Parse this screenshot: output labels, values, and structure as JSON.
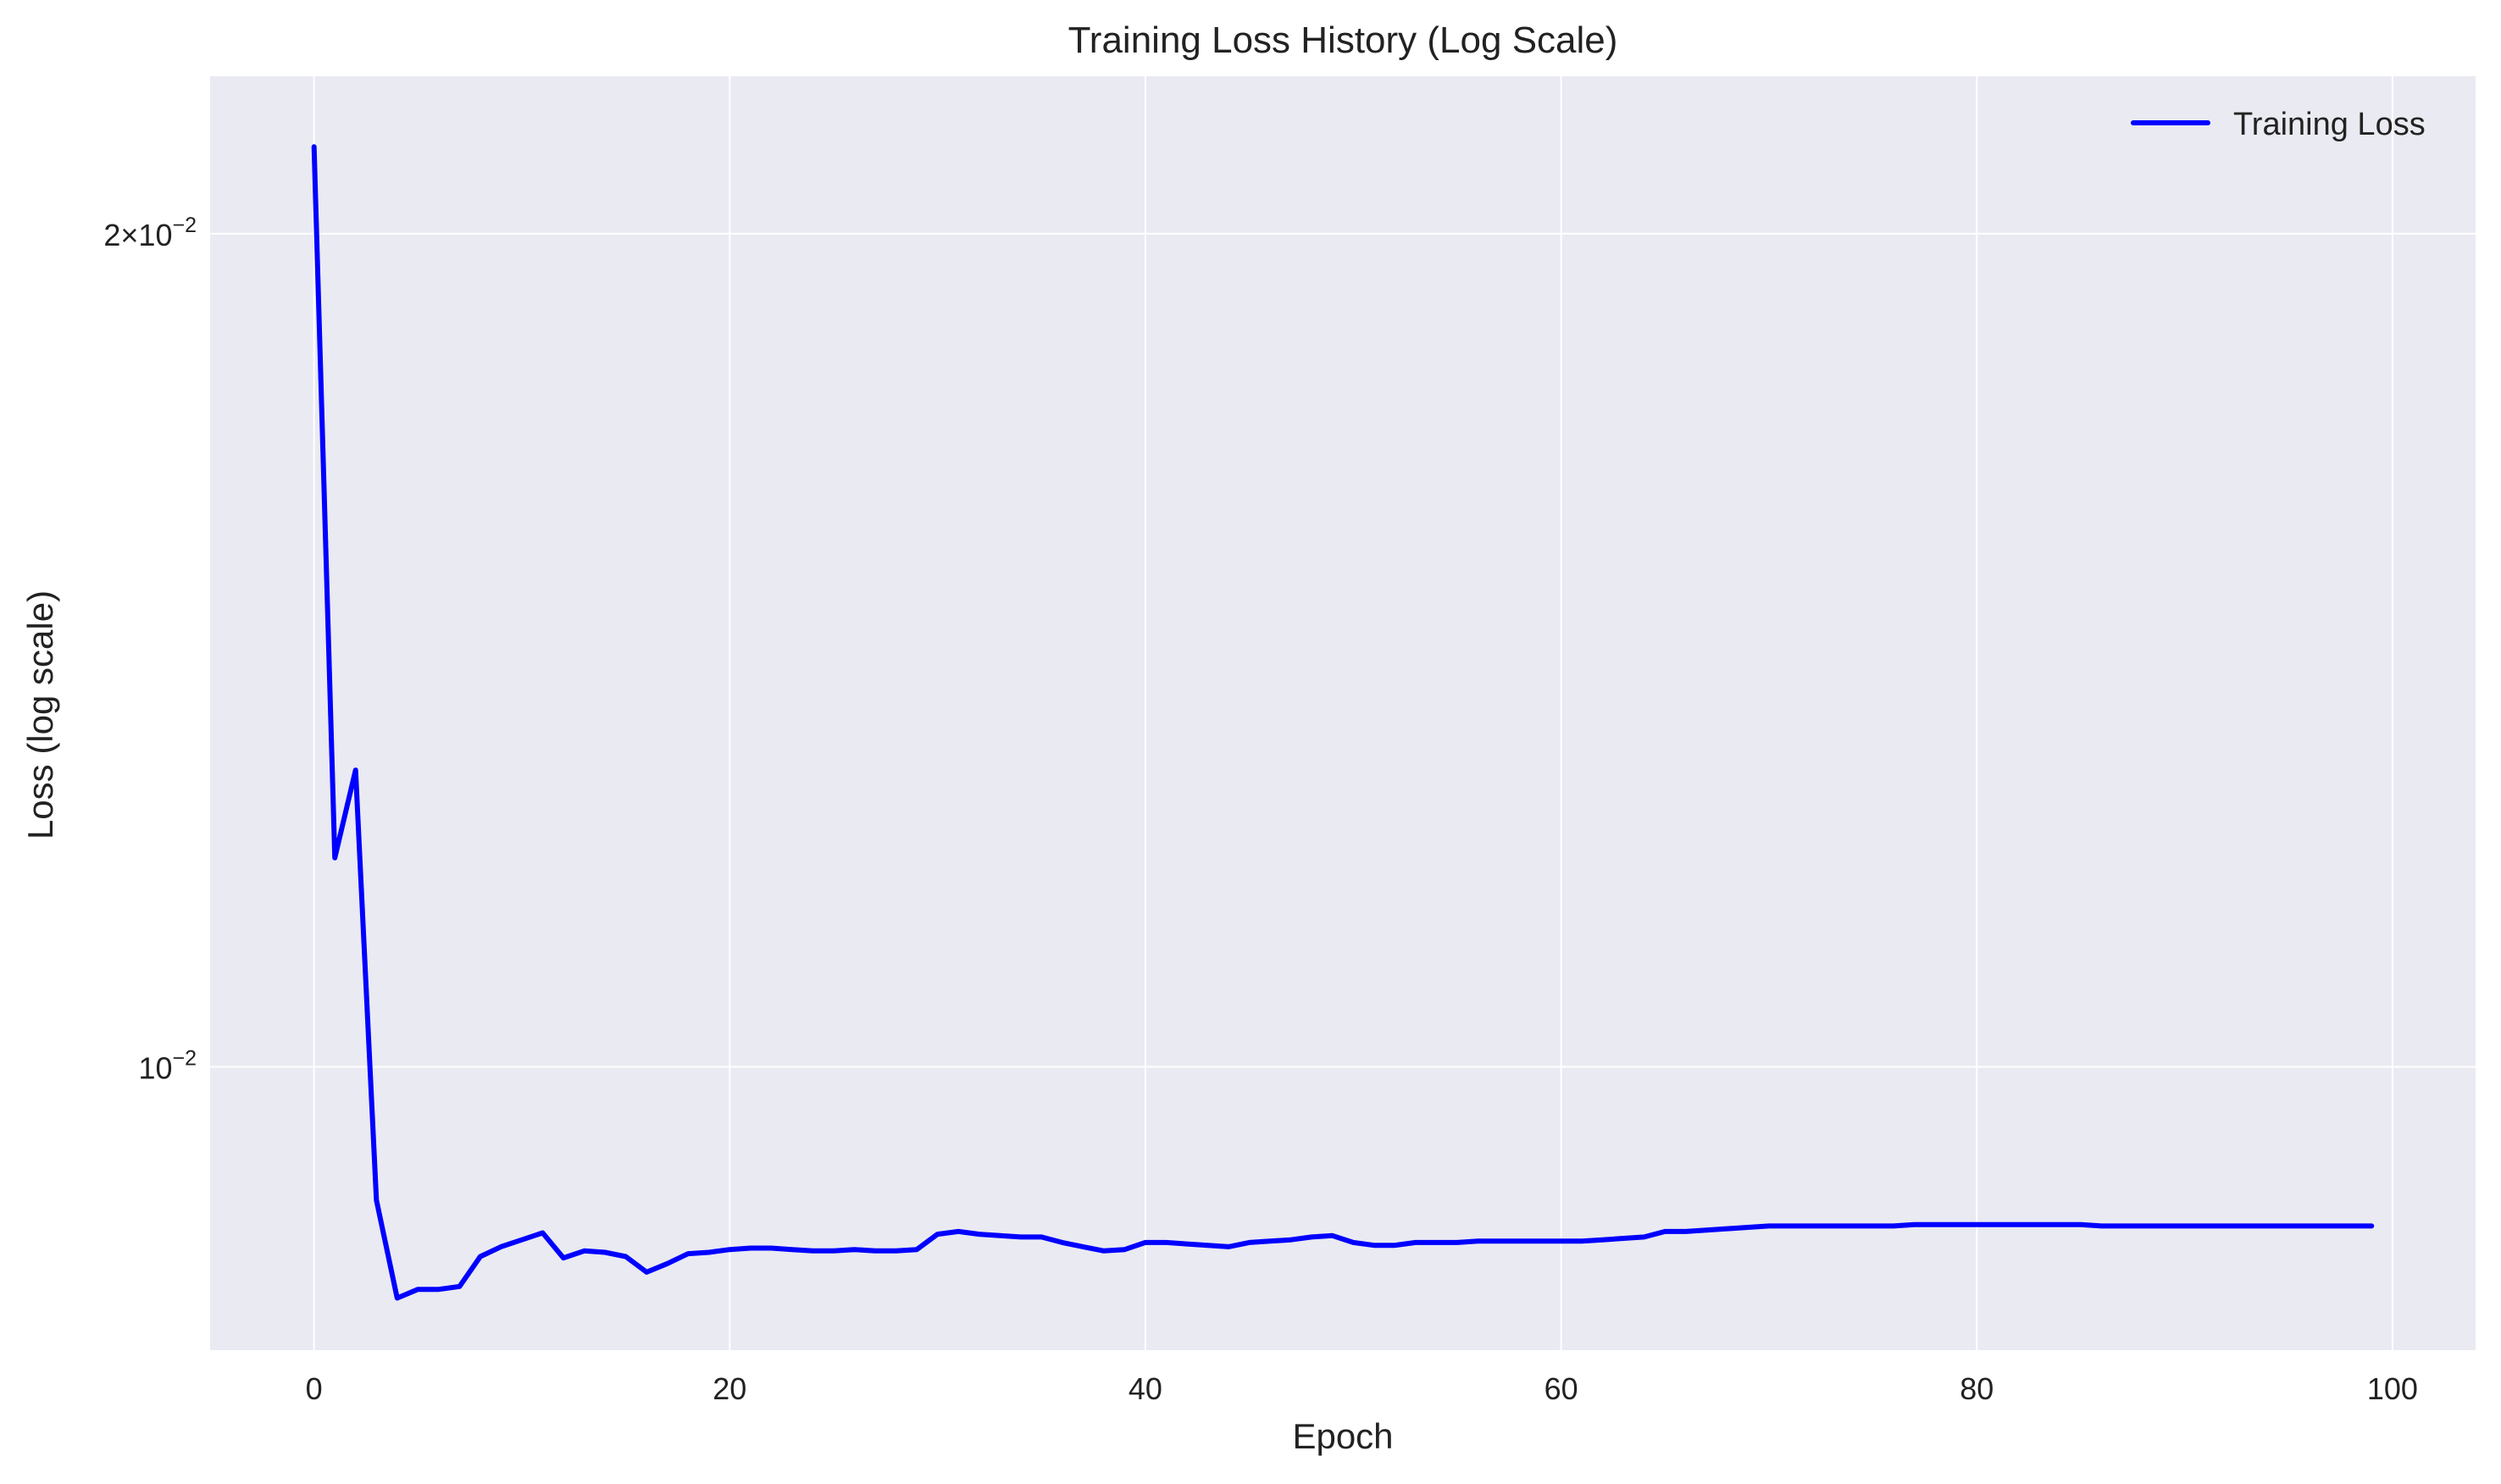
{
  "chart_data": {
    "type": "line",
    "title": "Training Loss History (Log Scale)",
    "xlabel": "Epoch",
    "ylabel": "Loss (log scale)",
    "yscale": "log",
    "xlim": [
      -5,
      104
    ],
    "ylim": [
      0.0079,
      0.0228
    ],
    "xticks": [
      0,
      20,
      40,
      60,
      80,
      100
    ],
    "yticks": [
      {
        "value": 0.02,
        "base": "2×10",
        "exp": "−2"
      },
      {
        "value": 0.01,
        "base": "10",
        "exp": "−2"
      }
    ],
    "grid": true,
    "legend": {
      "position": "top-right",
      "entries": [
        "Training Loss"
      ]
    },
    "colors": {
      "background": "#eaeaf2",
      "grid": "#ffffff",
      "series": "#0000ff"
    },
    "series": [
      {
        "name": "Training Loss",
        "x": [
          0,
          1,
          2,
          3,
          4,
          5,
          6,
          7,
          8,
          9,
          10,
          11,
          12,
          13,
          14,
          15,
          16,
          17,
          18,
          19,
          20,
          21,
          22,
          23,
          24,
          25,
          26,
          27,
          28,
          29,
          30,
          31,
          32,
          33,
          34,
          35,
          36,
          37,
          38,
          39,
          40,
          41,
          42,
          43,
          44,
          45,
          46,
          47,
          48,
          49,
          50,
          51,
          52,
          53,
          54,
          55,
          56,
          57,
          58,
          59,
          60,
          61,
          62,
          63,
          64,
          65,
          66,
          67,
          68,
          69,
          70,
          71,
          72,
          73,
          74,
          75,
          76,
          77,
          78,
          79,
          80,
          81,
          82,
          83,
          84,
          85,
          86,
          87,
          88,
          89,
          90,
          91,
          92,
          93,
          94,
          95,
          96,
          97,
          98,
          99
        ],
        "values": [
          0.0215,
          0.0119,
          0.0128,
          0.00895,
          0.00825,
          0.00831,
          0.00831,
          0.00833,
          0.00854,
          0.00861,
          0.00866,
          0.00871,
          0.00853,
          0.00858,
          0.00857,
          0.00854,
          0.00843,
          0.00849,
          0.00856,
          0.00857,
          0.00859,
          0.0086,
          0.0086,
          0.00859,
          0.00858,
          0.00858,
          0.00859,
          0.00858,
          0.00858,
          0.00859,
          0.0087,
          0.00872,
          0.0087,
          0.00869,
          0.00868,
          0.00868,
          0.00864,
          0.00861,
          0.00858,
          0.00859,
          0.00864,
          0.00864,
          0.00863,
          0.00862,
          0.00861,
          0.00864,
          0.00865,
          0.00866,
          0.00868,
          0.00869,
          0.00864,
          0.00862,
          0.00862,
          0.00864,
          0.00864,
          0.00864,
          0.00865,
          0.00865,
          0.00865,
          0.00865,
          0.00865,
          0.00865,
          0.00866,
          0.00867,
          0.00868,
          0.00872,
          0.00872,
          0.00873,
          0.00874,
          0.00875,
          0.00876,
          0.00876,
          0.00876,
          0.00876,
          0.00876,
          0.00876,
          0.00876,
          0.00877,
          0.00877,
          0.00877,
          0.00877,
          0.00877,
          0.00877,
          0.00877,
          0.00877,
          0.00877,
          0.00876,
          0.00876,
          0.00876,
          0.00876,
          0.00876,
          0.00876,
          0.00876,
          0.00876,
          0.00876,
          0.00876,
          0.00876,
          0.00876,
          0.00876,
          0.00876
        ]
      }
    ]
  }
}
